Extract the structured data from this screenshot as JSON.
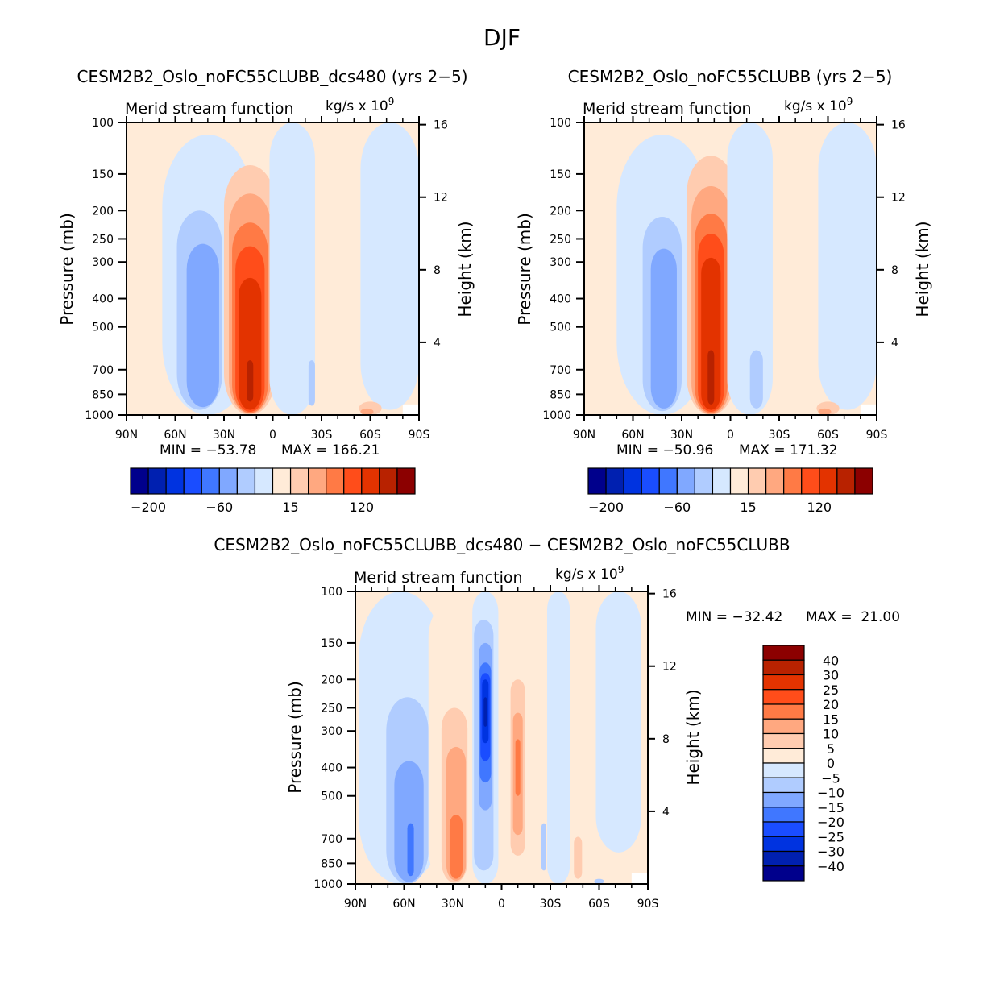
{
  "page": {
    "title": "DJF"
  },
  "colors": {
    "level_colors_16": [
      "#00008c",
      "#0020b0",
      "#0033e0",
      "#1a4dff",
      "#4077ff",
      "#80a8ff",
      "#b0ccff",
      "#d6e8ff",
      "#ffebd8",
      "#ffccb0",
      "#ffa880",
      "#ff7a45",
      "#ff4d1a",
      "#e33300",
      "#b82200",
      "#8c0000"
    ],
    "background_positive": "#ffebd8",
    "background_negative": "#d6e8ff"
  },
  "chart_data": [
    {
      "id": "panel1",
      "type": "heatmap",
      "title": "CESM2B2_Oslo_noFC55CLUBB_dcs480 (yrs 2−5)",
      "left_string": "Merid stream function",
      "right_string": "kg/s x 10",
      "right_string_exponent": "9",
      "xlabel": "",
      "ylabel": "Pressure (mb)",
      "y2label": "Height (km)",
      "x_ticks": [
        "90N",
        "60N",
        "30N",
        "0",
        "30S",
        "60S",
        "90S"
      ],
      "x_tick_values": [
        90,
        60,
        30,
        0,
        -30,
        -60,
        -90
      ],
      "xlim": [
        90,
        -90
      ],
      "y_ticks": [
        "100",
        "150",
        "200",
        "250",
        "300",
        "400",
        "500",
        "700",
        "850",
        "1000"
      ],
      "y_tick_values": [
        100,
        150,
        200,
        250,
        300,
        400,
        500,
        700,
        850,
        1000
      ],
      "ylim": [
        1000,
        100
      ],
      "y_scale": "log",
      "y2_ticks": [
        "16",
        "12",
        "8",
        "4"
      ],
      "y2_tick_values": [
        16,
        12,
        8,
        4
      ],
      "min_label": "MIN = −53.78",
      "max_label": "MAX = 166.21",
      "min": -53.78,
      "max": 166.21,
      "colorbar": {
        "orientation": "horizontal",
        "levels": [
          -200,
          -150,
          -100,
          -80,
          -60,
          -40,
          -20,
          0,
          15,
          30,
          45,
          60,
          90,
          120,
          150
        ],
        "shown_labels": [
          "−200",
          "−60",
          "15",
          "120"
        ],
        "shown_label_positions": [
          1,
          5,
          9,
          13
        ]
      },
      "features": [
        {
          "sign": "neg",
          "lat_center": 40,
          "lat_halfwidth": 28,
          "p_top": 110,
          "p_bottom": 1000,
          "level_index": 7
        },
        {
          "sign": "neg",
          "lat_center": 45,
          "lat_halfwidth": 14,
          "p_top": 200,
          "p_bottom": 960,
          "level_index": 6
        },
        {
          "sign": "neg",
          "lat_center": 43,
          "lat_halfwidth": 10,
          "p_top": 260,
          "p_bottom": 940,
          "level_index": 5
        },
        {
          "sign": "pos",
          "lat_center": 14,
          "lat_halfwidth": 16,
          "p_top": 140,
          "p_bottom": 1000,
          "level_index": 9
        },
        {
          "sign": "pos",
          "lat_center": 14,
          "lat_halfwidth": 13,
          "p_top": 175,
          "p_bottom": 990,
          "level_index": 10
        },
        {
          "sign": "pos",
          "lat_center": 14,
          "lat_halfwidth": 11,
          "p_top": 220,
          "p_bottom": 985,
          "level_index": 11
        },
        {
          "sign": "pos",
          "lat_center": 14,
          "lat_halfwidth": 9,
          "p_top": 265,
          "p_bottom": 975,
          "level_index": 12
        },
        {
          "sign": "pos",
          "lat_center": 14,
          "lat_halfwidth": 7,
          "p_top": 340,
          "p_bottom": 960,
          "level_index": 13
        },
        {
          "sign": "pos",
          "lat_center": 14,
          "lat_halfwidth": 2,
          "p_top": 650,
          "p_bottom": 900,
          "level_index": 14
        },
        {
          "sign": "neg",
          "lat_center": -12,
          "lat_halfwidth": 14,
          "p_top": 100,
          "p_bottom": 1000,
          "level_index": 7
        },
        {
          "sign": "neg",
          "lat_center": -24,
          "lat_halfwidth": 2,
          "p_top": 650,
          "p_bottom": 930,
          "level_index": 6
        },
        {
          "sign": "neg",
          "lat_center": -72,
          "lat_halfwidth": 18,
          "p_top": 100,
          "p_bottom": 960,
          "level_index": 7
        },
        {
          "sign": "pos",
          "lat_center": -60,
          "lat_halfwidth": 7,
          "p_top": 900,
          "p_bottom": 1000,
          "level_index": 9
        },
        {
          "sign": "pos",
          "lat_center": -58,
          "lat_halfwidth": 4,
          "p_top": 950,
          "p_bottom": 1000,
          "level_index": 10
        }
      ]
    },
    {
      "id": "panel2",
      "type": "heatmap",
      "title": "CESM2B2_Oslo_noFC55CLUBB (yrs 2−5)",
      "left_string": "Merid stream function",
      "right_string": "kg/s x 10",
      "right_string_exponent": "9",
      "xlabel": "",
      "ylabel": "Pressure (mb)",
      "y2label": "Height (km)",
      "x_ticks": [
        "90N",
        "60N",
        "30N",
        "0",
        "30S",
        "60S",
        "90S"
      ],
      "x_tick_values": [
        90,
        60,
        30,
        0,
        -30,
        -60,
        -90
      ],
      "xlim": [
        90,
        -90
      ],
      "y_ticks": [
        "100",
        "150",
        "200",
        "250",
        "300",
        "400",
        "500",
        "700",
        "850",
        "1000"
      ],
      "y_tick_values": [
        100,
        150,
        200,
        250,
        300,
        400,
        500,
        700,
        850,
        1000
      ],
      "ylim": [
        1000,
        100
      ],
      "y_scale": "log",
      "y2_ticks": [
        "16",
        "12",
        "8",
        "4"
      ],
      "y2_tick_values": [
        16,
        12,
        8,
        4
      ],
      "min_label": "MIN = −50.96",
      "max_label": "MAX = 171.32",
      "min": -50.96,
      "max": 171.32,
      "colorbar": {
        "orientation": "horizontal",
        "levels": [
          -200,
          -150,
          -100,
          -80,
          -60,
          -40,
          -20,
          0,
          15,
          30,
          45,
          60,
          90,
          120,
          150
        ],
        "shown_labels": [
          "−200",
          "−60",
          "15",
          "120"
        ],
        "shown_label_positions": [
          1,
          5,
          9,
          13
        ]
      },
      "features": [
        {
          "sign": "neg",
          "lat_center": 42,
          "lat_halfwidth": 28,
          "p_top": 110,
          "p_bottom": 1000,
          "level_index": 7
        },
        {
          "sign": "neg",
          "lat_center": 42,
          "lat_halfwidth": 12,
          "p_top": 210,
          "p_bottom": 970,
          "level_index": 6
        },
        {
          "sign": "neg",
          "lat_center": 41,
          "lat_halfwidth": 8,
          "p_top": 270,
          "p_bottom": 950,
          "level_index": 5
        },
        {
          "sign": "pos",
          "lat_center": 12,
          "lat_halfwidth": 15,
          "p_top": 130,
          "p_bottom": 1000,
          "level_index": 9
        },
        {
          "sign": "pos",
          "lat_center": 12,
          "lat_halfwidth": 12,
          "p_top": 165,
          "p_bottom": 995,
          "level_index": 10
        },
        {
          "sign": "pos",
          "lat_center": 12,
          "lat_halfwidth": 10,
          "p_top": 205,
          "p_bottom": 985,
          "level_index": 11
        },
        {
          "sign": "pos",
          "lat_center": 12,
          "lat_halfwidth": 8,
          "p_top": 240,
          "p_bottom": 975,
          "level_index": 12
        },
        {
          "sign": "pos",
          "lat_center": 12,
          "lat_halfwidth": 6,
          "p_top": 290,
          "p_bottom": 960,
          "level_index": 13
        },
        {
          "sign": "pos",
          "lat_center": 12,
          "lat_halfwidth": 2,
          "p_top": 600,
          "p_bottom": 920,
          "level_index": 14
        },
        {
          "sign": "neg",
          "lat_center": -12,
          "lat_halfwidth": 14,
          "p_top": 100,
          "p_bottom": 1000,
          "level_index": 7
        },
        {
          "sign": "neg",
          "lat_center": -16,
          "lat_halfwidth": 4,
          "p_top": 600,
          "p_bottom": 950,
          "level_index": 6
        },
        {
          "sign": "neg",
          "lat_center": -72,
          "lat_halfwidth": 18,
          "p_top": 100,
          "p_bottom": 960,
          "level_index": 7
        },
        {
          "sign": "pos",
          "lat_center": -60,
          "lat_halfwidth": 7,
          "p_top": 900,
          "p_bottom": 1000,
          "level_index": 9
        },
        {
          "sign": "pos",
          "lat_center": -58,
          "lat_halfwidth": 4,
          "p_top": 950,
          "p_bottom": 1000,
          "level_index": 10
        }
      ]
    },
    {
      "id": "panel3",
      "type": "heatmap",
      "title": "CESM2B2_Oslo_noFC55CLUBB_dcs480 − CESM2B2_Oslo_noFC55CLUBB",
      "left_string": "Merid stream function",
      "right_string": "kg/s x 10",
      "right_string_exponent": "9",
      "xlabel": "",
      "ylabel": "Pressure (mb)",
      "y2label": "Height (km)",
      "x_ticks": [
        "90N",
        "60N",
        "30N",
        "0",
        "30S",
        "60S",
        "90S"
      ],
      "x_tick_values": [
        90,
        60,
        30,
        0,
        -30,
        -60,
        -90
      ],
      "xlim": [
        90,
        -90
      ],
      "y_ticks": [
        "100",
        "150",
        "200",
        "250",
        "300",
        "400",
        "500",
        "700",
        "850",
        "1000"
      ],
      "y_tick_values": [
        100,
        150,
        200,
        250,
        300,
        400,
        500,
        700,
        850,
        1000
      ],
      "ylim": [
        1000,
        100
      ],
      "y_scale": "log",
      "y2_ticks": [
        "16",
        "12",
        "8",
        "4"
      ],
      "y2_tick_values": [
        16,
        12,
        8,
        4
      ],
      "min_label": "MIN = −32.42",
      "max_label": "MAX =  21.00",
      "min": -32.42,
      "max": 21.0,
      "colorbar": {
        "orientation": "vertical",
        "levels": [
          -40,
          -30,
          -25,
          -20,
          -15,
          -10,
          -5,
          0,
          5,
          10,
          15,
          20,
          25,
          30,
          40
        ],
        "labels": [
          "40",
          "30",
          "25",
          "20",
          "15",
          "10",
          "5",
          "0",
          "−5",
          "−10",
          "−15",
          "−20",
          "−25",
          "−30",
          "−40"
        ]
      },
      "features": [
        {
          "sign": "neg",
          "lat_center": 62,
          "lat_halfwidth": 26,
          "p_top": 100,
          "p_bottom": 1000,
          "level_index": 7
        },
        {
          "sign": "neg",
          "lat_center": 58,
          "lat_halfwidth": 13,
          "p_top": 230,
          "p_bottom": 1000,
          "level_index": 6
        },
        {
          "sign": "neg",
          "lat_center": 57,
          "lat_halfwidth": 9,
          "p_top": 380,
          "p_bottom": 985,
          "level_index": 5
        },
        {
          "sign": "neg",
          "lat_center": 56,
          "lat_halfwidth": 2,
          "p_top": 620,
          "p_bottom": 940,
          "level_index": 4
        },
        {
          "sign": "pos",
          "lat_center": 32,
          "lat_halfwidth": 13,
          "p_top": 110,
          "p_bottom": 1000,
          "level_index": 8
        },
        {
          "sign": "pos",
          "lat_center": 29,
          "lat_halfwidth": 8,
          "p_top": 250,
          "p_bottom": 990,
          "level_index": 9
        },
        {
          "sign": "pos",
          "lat_center": 28,
          "lat_halfwidth": 6,
          "p_top": 340,
          "p_bottom": 975,
          "level_index": 10
        },
        {
          "sign": "pos",
          "lat_center": 28,
          "lat_halfwidth": 4,
          "p_top": 580,
          "p_bottom": 960,
          "level_index": 11
        },
        {
          "sign": "neg",
          "lat_center": 10,
          "lat_halfwidth": 8,
          "p_top": 100,
          "p_bottom": 1000,
          "level_index": 7
        },
        {
          "sign": "neg",
          "lat_center": 11,
          "lat_halfwidth": 6,
          "p_top": 125,
          "p_bottom": 900,
          "level_index": 6
        },
        {
          "sign": "neg",
          "lat_center": 10,
          "lat_halfwidth": 4,
          "p_top": 150,
          "p_bottom": 560,
          "level_index": 5
        },
        {
          "sign": "neg",
          "lat_center": 10,
          "lat_halfwidth": 3.5,
          "p_top": 175,
          "p_bottom": 450,
          "level_index": 4
        },
        {
          "sign": "neg",
          "lat_center": 10,
          "lat_halfwidth": 3,
          "p_top": 190,
          "p_bottom": 380,
          "level_index": 3
        },
        {
          "sign": "neg",
          "lat_center": 10,
          "lat_halfwidth": 2,
          "p_top": 200,
          "p_bottom": 330,
          "level_index": 2
        },
        {
          "sign": "neg",
          "lat_center": 10,
          "lat_halfwidth": 1,
          "p_top": 230,
          "p_bottom": 290,
          "level_index": 1
        },
        {
          "sign": "pos",
          "lat_center": -10,
          "lat_halfwidth": 6,
          "p_top": 160,
          "p_bottom": 950,
          "level_index": 8
        },
        {
          "sign": "pos",
          "lat_center": -10,
          "lat_halfwidth": 4.5,
          "p_top": 200,
          "p_bottom": 800,
          "level_index": 9
        },
        {
          "sign": "pos",
          "lat_center": -10,
          "lat_halfwidth": 3,
          "p_top": 260,
          "p_bottom": 680,
          "level_index": 10
        },
        {
          "sign": "pos",
          "lat_center": -10,
          "lat_halfwidth": 1.5,
          "p_top": 320,
          "p_bottom": 500,
          "level_index": 11
        },
        {
          "sign": "neg",
          "lat_center": -35,
          "lat_halfwidth": 7,
          "p_top": 100,
          "p_bottom": 1000,
          "level_index": 7
        },
        {
          "sign": "neg",
          "lat_center": -26,
          "lat_halfwidth": 1.5,
          "p_top": 620,
          "p_bottom": 900,
          "level_index": 6
        },
        {
          "sign": "pos",
          "lat_center": -47,
          "lat_halfwidth": 2.5,
          "p_top": 690,
          "p_bottom": 960,
          "level_index": 9
        },
        {
          "sign": "neg",
          "lat_center": -72,
          "lat_halfwidth": 14,
          "p_top": 100,
          "p_bottom": 780,
          "level_index": 7
        },
        {
          "sign": "neg",
          "lat_center": -60,
          "lat_halfwidth": 3,
          "p_top": 960,
          "p_bottom": 1000,
          "level_index": 6
        }
      ]
    }
  ]
}
